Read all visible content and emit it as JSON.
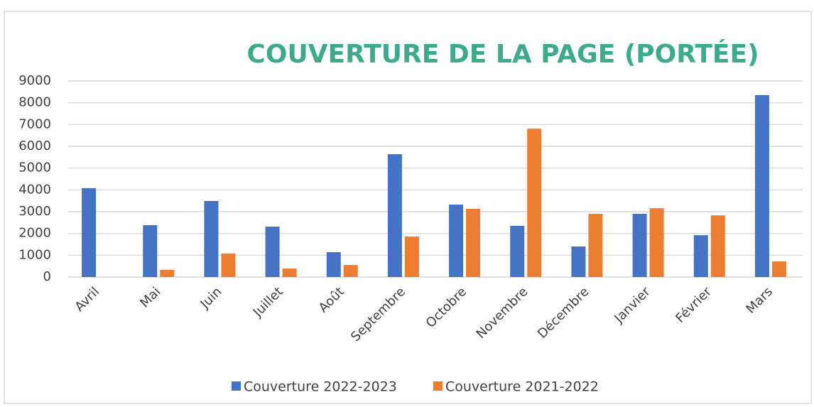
{
  "chart_data": {
    "type": "bar",
    "title": "COUVERTURE DE LA PAGE (PORTÉE)",
    "categories": [
      "Avril",
      "Mai",
      "Juin",
      "Juillet",
      "Août",
      "Septembre",
      "Octobre",
      "Novembre",
      "Décembre",
      "Janvier",
      "Février",
      "Mars"
    ],
    "series": [
      {
        "name": "Couverture 2022-2023",
        "color": "#4472c4",
        "values": [
          4080,
          2380,
          3490,
          2315,
          1140,
          5640,
          3325,
          2350,
          1400,
          2900,
          1920,
          8350
        ]
      },
      {
        "name": "Couverture 2021-2022",
        "color": "#ed7d31",
        "values": [
          0,
          330,
          1080,
          390,
          550,
          1860,
          3130,
          6810,
          2900,
          3160,
          2830,
          720
        ]
      }
    ],
    "ylim": [
      0,
      9000
    ],
    "yticks": [
      0,
      1000,
      2000,
      3000,
      4000,
      5000,
      6000,
      7000,
      8000,
      9000
    ],
    "grid": true,
    "legend": "bottom"
  }
}
